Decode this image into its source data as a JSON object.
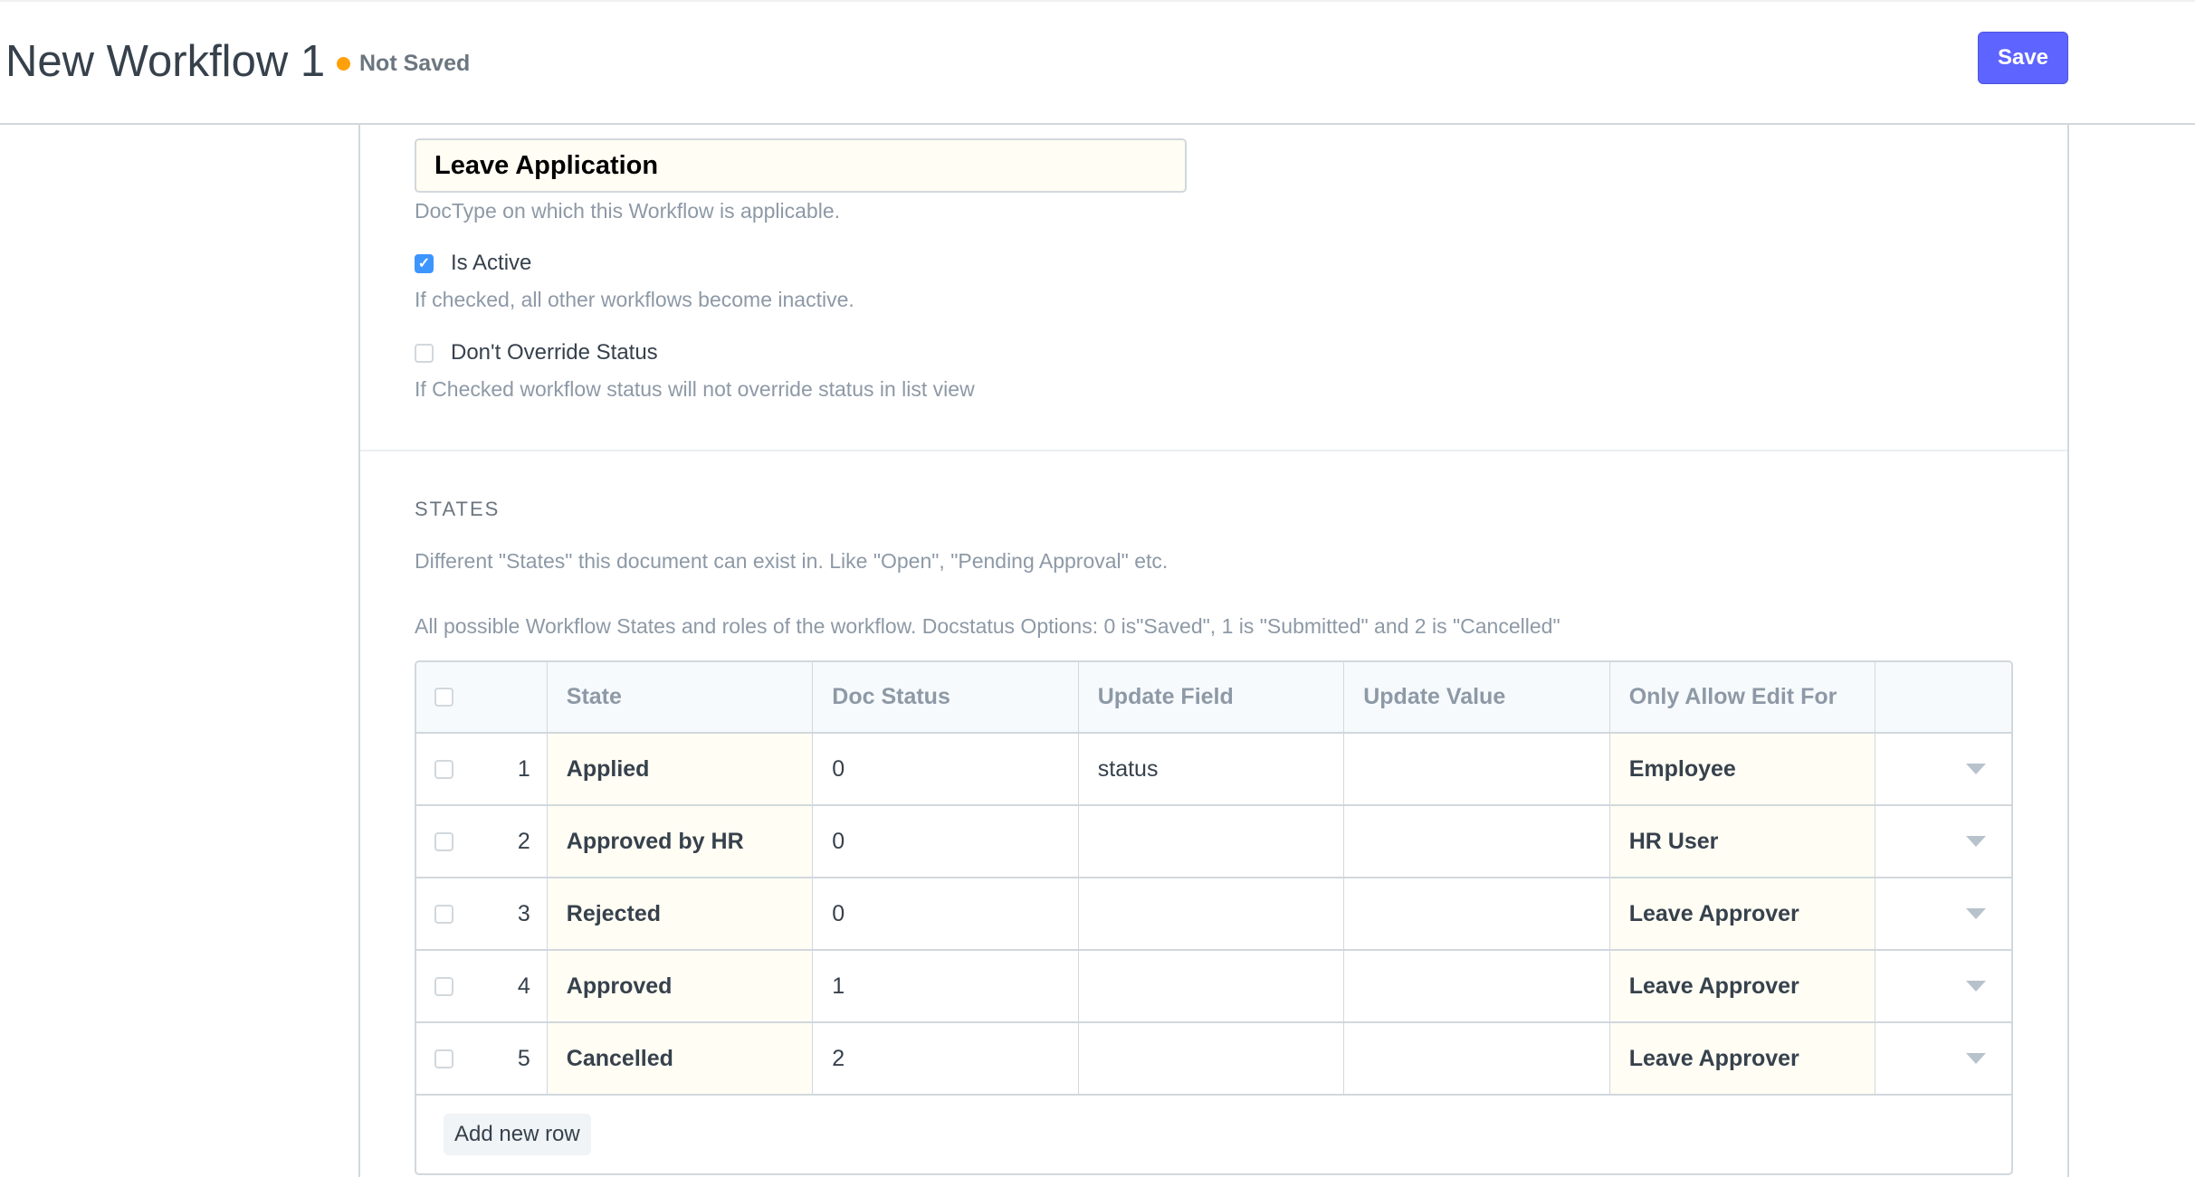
{
  "header": {
    "title": "New Workflow 1",
    "status": "Not Saved",
    "save_label": "Save",
    "status_color": "#ffa00a",
    "accent": "#5e64ff"
  },
  "form": {
    "document_type_value": "Leave Application",
    "document_type_help": "DocType on which this Workflow is applicable.",
    "is_active": {
      "label": "Is Active",
      "checked": true,
      "help": "If checked, all other workflows become inactive."
    },
    "dont_override": {
      "label": "Don't Override Status",
      "checked": false,
      "help": "If Checked workflow status will not override status in list view"
    }
  },
  "states": {
    "section_title": "STATES",
    "description": "Different \"States\" this document can exist in. Like \"Open\", \"Pending Approval\" etc.",
    "table_help": "All possible Workflow States and roles of the workflow. Docstatus Options: 0 is\"Saved\", 1 is \"Submitted\" and 2 is \"Cancelled\"",
    "columns": [
      "State",
      "Doc Status",
      "Update Field",
      "Update Value",
      "Only Allow Edit For"
    ],
    "rows": [
      {
        "idx": "1",
        "state": "Applied",
        "doc_status": "0",
        "update_field": "status",
        "update_value": "",
        "allow_edit": "Employee"
      },
      {
        "idx": "2",
        "state": "Approved by HR",
        "doc_status": "0",
        "update_field": "",
        "update_value": "",
        "allow_edit": "HR User"
      },
      {
        "idx": "3",
        "state": "Rejected",
        "doc_status": "0",
        "update_field": "",
        "update_value": "",
        "allow_edit": "Leave Approver"
      },
      {
        "idx": "4",
        "state": "Approved",
        "doc_status": "1",
        "update_field": "",
        "update_value": "",
        "allow_edit": "Leave Approver"
      },
      {
        "idx": "5",
        "state": "Cancelled",
        "doc_status": "2",
        "update_field": "",
        "update_value": "",
        "allow_edit": "Leave Approver"
      }
    ],
    "add_row_label": "Add new row"
  }
}
